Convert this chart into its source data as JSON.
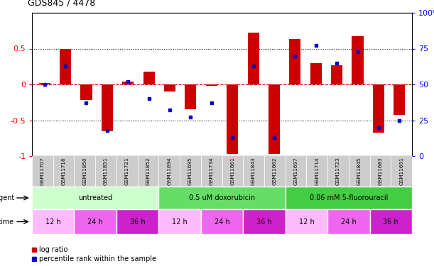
{
  "title": "GDS845 / 4478",
  "samples": [
    "GSM11707",
    "GSM11716",
    "GSM11850",
    "GSM11851",
    "GSM11721",
    "GSM11852",
    "GSM11694",
    "GSM11695",
    "GSM11734",
    "GSM11861",
    "GSM11843",
    "GSM11862",
    "GSM11697",
    "GSM11714",
    "GSM11723",
    "GSM11845",
    "GSM11683",
    "GSM11691"
  ],
  "log_ratio": [
    0.02,
    0.5,
    -0.22,
    -0.65,
    0.04,
    0.18,
    -0.1,
    -0.35,
    -0.02,
    -0.97,
    0.72,
    -0.97,
    0.63,
    0.3,
    0.27,
    0.67,
    -0.67,
    -0.43
  ],
  "percentile_rank": [
    50,
    63,
    37,
    18,
    52,
    40,
    32,
    27,
    37,
    13,
    63,
    13,
    70,
    77,
    65,
    73,
    20,
    25
  ],
  "agent_groups": [
    {
      "label": "untreated",
      "start": 0,
      "end": 6,
      "color": "#ccffcc"
    },
    {
      "label": "0.5 uM doxorubicin",
      "start": 6,
      "end": 12,
      "color": "#66dd66"
    },
    {
      "label": "0.06 mM 5-fluorouracil",
      "start": 12,
      "end": 18,
      "color": "#44cc44"
    }
  ],
  "time_groups": [
    {
      "label": "12 h",
      "start": 0,
      "end": 2,
      "color": "#ffbbff"
    },
    {
      "label": "24 h",
      "start": 2,
      "end": 4,
      "color": "#ee66ee"
    },
    {
      "label": "36 h",
      "start": 4,
      "end": 6,
      "color": "#cc22cc"
    },
    {
      "label": "12 h",
      "start": 6,
      "end": 8,
      "color": "#ffbbff"
    },
    {
      "label": "24 h",
      "start": 8,
      "end": 10,
      "color": "#ee66ee"
    },
    {
      "label": "36 h",
      "start": 10,
      "end": 12,
      "color": "#cc22cc"
    },
    {
      "label": "12 h",
      "start": 12,
      "end": 14,
      "color": "#ffbbff"
    },
    {
      "label": "24 h",
      "start": 14,
      "end": 16,
      "color": "#ee66ee"
    },
    {
      "label": "36 h",
      "start": 16,
      "end": 18,
      "color": "#cc22cc"
    }
  ],
  "bar_color": "#cc0000",
  "dot_color": "#0000cc",
  "ylim": [
    -1.0,
    1.0
  ],
  "yticks_left": [
    -1,
    -0.5,
    0,
    0.5
  ],
  "ytick_top": 1,
  "yticks_right": [
    0,
    25,
    50,
    75,
    100
  ],
  "hline_color": "#cc0000",
  "grid_color": "#000000",
  "bar_width": 0.55,
  "sample_box_color": "#cccccc",
  "fig_bg": "#ffffff"
}
